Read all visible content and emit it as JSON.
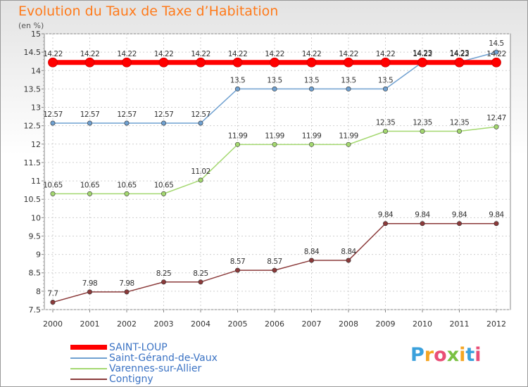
{
  "title": "Evolution du Taux de Taxe d’Habitation",
  "subtitle": "(en %)",
  "logo": {
    "text": "Proxiti",
    "colors": [
      "#3ba1dc",
      "#f5a623",
      "#e94e77",
      "#7ac143",
      "#f5a623",
      "#3ba1dc",
      "#e94e77"
    ]
  },
  "chart_data": {
    "type": "line",
    "x": [
      "2000",
      "2001",
      "2002",
      "2003",
      "2004",
      "2005",
      "2006",
      "2007",
      "2008",
      "2009",
      "2010",
      "2011",
      "2012"
    ],
    "ylim": [
      7.5,
      15
    ],
    "yticks": [
      "7.5",
      "8",
      "8.5",
      "9",
      "9.5",
      "10",
      "10.5",
      "11",
      "11.5",
      "12",
      "12.5",
      "13",
      "13.5",
      "14",
      "14.5",
      "15"
    ],
    "grid": true,
    "legend_position": "bottom-left",
    "series": [
      {
        "name": "SAINT-LOUP",
        "color": "#ff0000",
        "values": [
          14.22,
          14.22,
          14.22,
          14.22,
          14.22,
          14.22,
          14.22,
          14.22,
          14.22,
          14.22,
          14.22,
          14.22,
          14.22
        ],
        "labels": [
          "14.22",
          "14.22",
          "14.22",
          "14.22",
          "14.22",
          "14.22",
          "14.22",
          "14.22",
          "14.22",
          "14.22",
          "14.22",
          "14.22",
          "14.22"
        ]
      },
      {
        "name": "Saint-Gérand-de-Vaux",
        "color": "#6fa0d0",
        "values": [
          12.57,
          12.57,
          12.57,
          12.57,
          12.57,
          13.5,
          13.5,
          13.5,
          13.5,
          13.5,
          14.23,
          14.23,
          14.5
        ],
        "labels": [
          "12.57",
          "12.57",
          "12.57",
          "12.57",
          "12.57",
          "13.5",
          "13.5",
          "13.5",
          "13.5",
          "13.5",
          "14.23",
          "14.23",
          "14.5"
        ]
      },
      {
        "name": "Varennes-sur-Allier",
        "color": "#a4d870",
        "values": [
          10.65,
          10.65,
          10.65,
          10.65,
          11.02,
          11.99,
          11.99,
          11.99,
          11.99,
          12.35,
          12.35,
          12.35,
          12.47
        ],
        "labels": [
          "10.65",
          "10.65",
          "10.65",
          "10.65",
          "11.02",
          "11.99",
          "11.99",
          "11.99",
          "11.99",
          "12.35",
          "12.35",
          "12.35",
          "12.47"
        ]
      },
      {
        "name": "Contigny",
        "color": "#8b3a3a",
        "values": [
          7.7,
          7.98,
          7.98,
          8.25,
          8.25,
          8.57,
          8.57,
          8.84,
          8.84,
          9.84,
          9.84,
          9.84,
          9.84
        ],
        "labels": [
          "7.7",
          "7.98",
          "7.98",
          "8.25",
          "8.25",
          "8.57",
          "8.57",
          "8.84",
          "8.84",
          "9.84",
          "9.84",
          "9.84",
          "9.84"
        ]
      }
    ]
  }
}
